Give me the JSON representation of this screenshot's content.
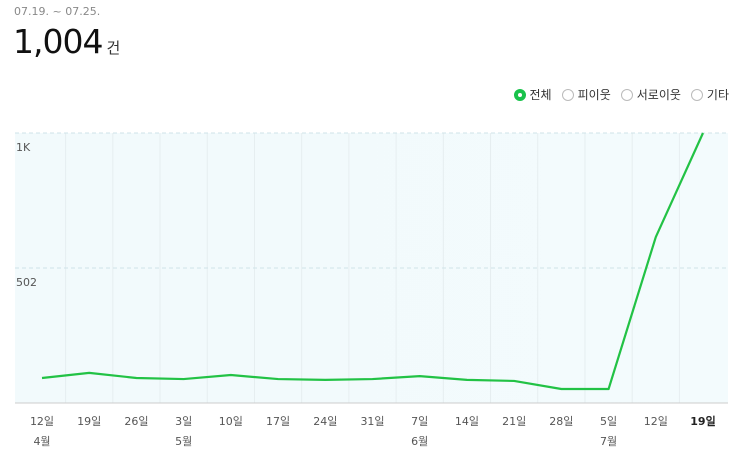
{
  "range": "07.19. ~ 07.25.",
  "total": "1,004",
  "unit": "건",
  "filters": [
    {
      "label": "전체",
      "selected": true
    },
    {
      "label": "피이웃",
      "selected": false
    },
    {
      "label": "서로이웃",
      "selected": false
    },
    {
      "label": "기타",
      "selected": false
    }
  ],
  "chart_data": {
    "type": "line",
    "categories": [
      "12일",
      "19일",
      "26일",
      "3일",
      "10일",
      "17일",
      "24일",
      "31일",
      "7일",
      "14일",
      "21일",
      "28일",
      "5일",
      "12일",
      "19일"
    ],
    "months": [
      "4월",
      null,
      null,
      "5월",
      null,
      null,
      null,
      null,
      "6월",
      null,
      null,
      null,
      "7월",
      null,
      null
    ],
    "values": [
      93,
      112,
      93,
      89,
      104,
      89,
      86,
      89,
      100,
      86,
      82,
      52,
      52,
      617,
      1004
    ],
    "color": "#22c245",
    "ylim": [
      0,
      1004
    ],
    "yticks": [
      502,
      {
        "value": 1004,
        "label": "1K"
      }
    ],
    "grid": true
  }
}
